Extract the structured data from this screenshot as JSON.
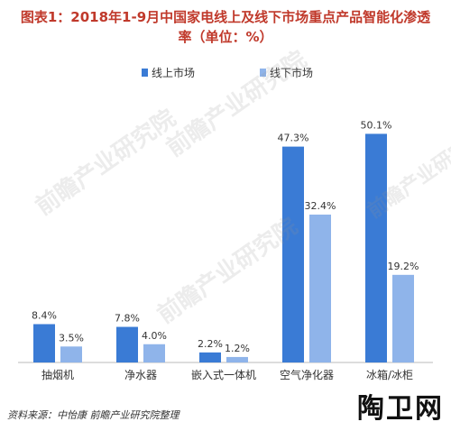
{
  "title_line1": "图表1：2018年1-9月中国家电线上及线下市场重点产品智能化渗透",
  "title_line2": "率（单位：%）",
  "source": "资料来源：中怡康  前瞻产业研究院整理",
  "watermark": "前瞻产业研究院",
  "corner_logo": "陶卫网",
  "colors": {
    "online": "#3a7bd5",
    "offline": "#8fb4ea",
    "title": "#c0392b"
  },
  "chart_data": {
    "type": "bar",
    "title": "图表1：2018年1-9月中国家电线上及线下市场重点产品智能化渗透率（单位：%）",
    "categories": [
      "抽烟机",
      "净水器",
      "嵌入式一体机",
      "空气净化器",
      "冰箱/冰柜"
    ],
    "series": [
      {
        "name": "线上市场",
        "values": [
          8.4,
          7.8,
          2.2,
          47.3,
          50.1
        ]
      },
      {
        "name": "线下市场",
        "values": [
          3.5,
          4.0,
          1.2,
          32.4,
          19.2
        ]
      }
    ],
    "value_suffix": "%",
    "ylim": [
      0,
      60
    ],
    "grid": false,
    "legend": "top-left"
  }
}
